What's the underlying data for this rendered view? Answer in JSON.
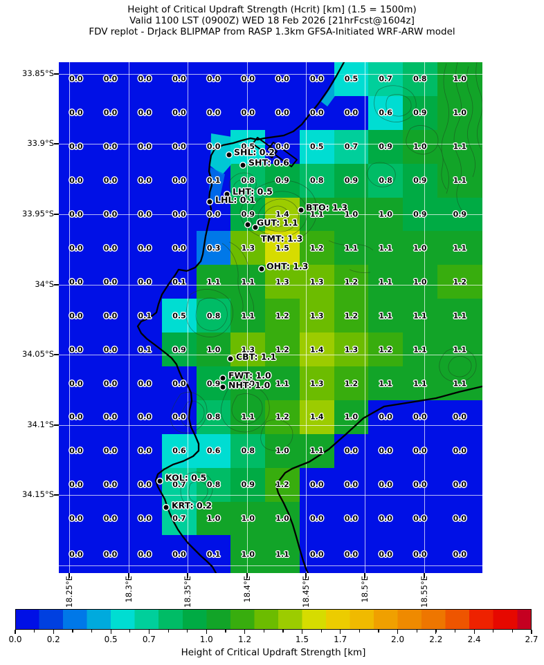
{
  "title": {
    "line1": "Height of Critical Updraft Strength (Hcrit) [km] (1.5 = 1500m)",
    "line2": "Valid 1100 LST (0900Z) WED 18 Feb 2026 [21hrFcst@1604z]",
    "line3": "FDV replot - DrJack BLIPMAP from RASP 1.3km GFSA-Initiated WRF-ARW model"
  },
  "chart_data": {
    "type": "heatmap",
    "title": "Height of Critical Updraft Strength (Hcrit) [km]",
    "x_labels": [
      "18.25°E",
      "18.3°E",
      "18.35°E",
      "18.4°E",
      "18.45°E",
      "18.5°E",
      "18.55°E"
    ],
    "y_labels": [
      "33.85°S",
      "33.9°S",
      "33.95°S",
      "34°S",
      "34.05°S",
      "34.1°S",
      "34.15°S"
    ],
    "value_range": [
      0.0,
      2.7
    ],
    "values": [
      [
        "0.0",
        "0.0",
        "0.0",
        "0.0",
        "0.0",
        "0.0",
        "0.0",
        "0.0",
        "0.5",
        "0.7",
        "0.8",
        "1.0"
      ],
      [
        "0.0",
        "0.0",
        "0.0",
        "0.0",
        "0.0",
        "0.0",
        "0.0",
        "0.0",
        "0.0",
        "0.6",
        "0.9",
        "1.0"
      ],
      [
        "0.0",
        "0.0",
        "0.0",
        "0.0",
        "0.0",
        "0.5",
        "0.0",
        "0.5",
        "0.7",
        "0.9",
        "1.0",
        "1.1"
      ],
      [
        "0.0",
        "0.0",
        "0.0",
        "0.0",
        "0.1",
        "0.8",
        "0.9",
        "0.8",
        "0.9",
        "0.8",
        "0.9",
        "1.1"
      ],
      [
        "0.0",
        "0.0",
        "0.0",
        "0.0",
        "0.0",
        "0.9",
        "1.4",
        "1.1",
        "1.0",
        "1.0",
        "0.9",
        "0.9"
      ],
      [
        "0.0",
        "0.0",
        "0.0",
        "0.0",
        "0.3",
        "1.3",
        "1.5",
        "1.2",
        "1.1",
        "1.1",
        "1.0",
        "1.1"
      ],
      [
        "0.0",
        "0.0",
        "0.0",
        "0.1",
        "1.1",
        "1.1",
        "1.3",
        "1.3",
        "1.2",
        "1.1",
        "1.0",
        "1.2"
      ],
      [
        "0.0",
        "0.0",
        "0.1",
        "0.5",
        "0.8",
        "1.1",
        "1.2",
        "1.3",
        "1.2",
        "1.1",
        "1.1",
        "1.1"
      ],
      [
        "0.0",
        "0.0",
        "0.1",
        "0.9",
        "1.0",
        "1.3",
        "1.2",
        "1.4",
        "1.3",
        "1.2",
        "1.1",
        "1.1"
      ],
      [
        "0.0",
        "0.0",
        "0.0",
        "0.0",
        "0.9",
        "1.0",
        "1.1",
        "1.3",
        "1.2",
        "1.1",
        "1.1",
        "1.1"
      ],
      [
        "0.0",
        "0.0",
        "0.0",
        "0.0",
        "0.8",
        "1.1",
        "1.2",
        "1.4",
        "1.0",
        "0.0",
        "0.0",
        "0.0"
      ],
      [
        "0.0",
        "0.0",
        "0.0",
        "0.6",
        "0.6",
        "0.8",
        "1.0",
        "1.1",
        "0.0",
        "0.0",
        "0.0",
        "0.0"
      ],
      [
        "0.0",
        "0.0",
        "0.0",
        "0.7",
        "0.8",
        "0.9",
        "1.2",
        "0.0",
        "0.0",
        "0.0",
        "0.0",
        "0.0"
      ],
      [
        "0.0",
        "0.0",
        "0.0",
        "0.7",
        "1.0",
        "1.0",
        "1.0",
        "0.0",
        "0.0",
        "0.0",
        "0.0",
        "0.0"
      ],
      [
        "0.0",
        "0.0",
        "0.0",
        "0.0",
        "0.1",
        "1.0",
        "1.1",
        "0.0",
        "0.0",
        "0.0",
        "0.0",
        "0.0"
      ]
    ]
  },
  "map": {
    "x_ticks": [
      {
        "label": "18.25°E",
        "x": 100
      },
      {
        "label": "18.3°E",
        "x": 186
      },
      {
        "label": "18.35°E",
        "x": 271
      },
      {
        "label": "18.4°E",
        "x": 357
      },
      {
        "label": "18.45°E",
        "x": 442
      },
      {
        "label": "18.5°E",
        "x": 527
      },
      {
        "label": "18.55°E",
        "x": 613
      }
    ],
    "y_ticks": [
      {
        "label": "33.85°S",
        "y": 107
      },
      {
        "label": "33.9°S",
        "y": 208
      },
      {
        "label": "33.95°S",
        "y": 310
      },
      {
        "label": "34°S",
        "y": 412
      },
      {
        "label": "34.05°S",
        "y": 513
      },
      {
        "label": "34.1°S",
        "y": 615
      },
      {
        "label": "34.15°S",
        "y": 716
      }
    ],
    "extra_gridlines_y": [
      818
    ],
    "ocean_color": "#0010e6",
    "stations": [
      {
        "label": "SHL: 0.2",
        "dot": [
          331,
          224
        ],
        "text": [
          338,
          220
        ]
      },
      {
        "label": "SHT: 0.6",
        "dot": [
          351,
          239
        ],
        "text": [
          359,
          235
        ]
      },
      {
        "label": "LHT: 0.5",
        "dot": [
          328,
          281
        ],
        "text": [
          336,
          277
        ]
      },
      {
        "label": "LHL: 0.1",
        "dot": [
          303,
          292
        ],
        "text": [
          311,
          289
        ]
      },
      {
        "label": "BTO: 1.3",
        "dot": [
          435,
          304
        ],
        "text": [
          442,
          300
        ]
      },
      {
        "label": "GUT: 1.1",
        "dot": [
          358,
          325
        ],
        "text": [
          371,
          322
        ]
      },
      {
        "label": "TMT: 1.3",
        "dot": [
          369,
          329
        ],
        "text": [
          377,
          345
        ]
      },
      {
        "label": "OHT: 1.3",
        "dot": [
          378,
          389
        ],
        "text": [
          385,
          385
        ]
      },
      {
        "label": "CBT: 1.1",
        "dot": [
          333,
          519
        ],
        "text": [
          341,
          516
        ]
      },
      {
        "label": "FWT: 1.0",
        "dot": [
          322,
          547
        ],
        "text": [
          330,
          543
        ]
      },
      {
        "label": "NHT: 1.0",
        "dot": [
          322,
          560
        ],
        "text": [
          330,
          557
        ]
      },
      {
        "label": "KOL: 0.5",
        "dot": [
          231,
          696
        ],
        "text": [
          239,
          691
        ]
      },
      {
        "label": "KRT: 0.2",
        "dot": [
          240,
          734
        ],
        "text": [
          248,
          731
        ]
      }
    ]
  },
  "colorbar": {
    "title": "Height of Critical Updraft Strength [km]",
    "min": 0,
    "max": 2.7,
    "band_step": 0.125,
    "tick_labels": [
      "0.0",
      "0.2",
      "0.5",
      "0.7",
      "1.0",
      "1.2",
      "1.5",
      "1.7",
      "2.0",
      "2.2",
      "2.4",
      "2.7"
    ],
    "band_colors": [
      "#0010e6",
      "#0040e0",
      "#0078e8",
      "#00aadd",
      "#00ddd2",
      "#00cf9b",
      "#00bc66",
      "#00ab44",
      "#12a428",
      "#38ad0e",
      "#6cbc00",
      "#9ccc00",
      "#d6dc00",
      "#eccc00",
      "#f0ba00",
      "#f0a000",
      "#ef8a00",
      "#ee7600",
      "#ee5500",
      "#ee2200",
      "#e60800",
      "#c50021"
    ]
  }
}
